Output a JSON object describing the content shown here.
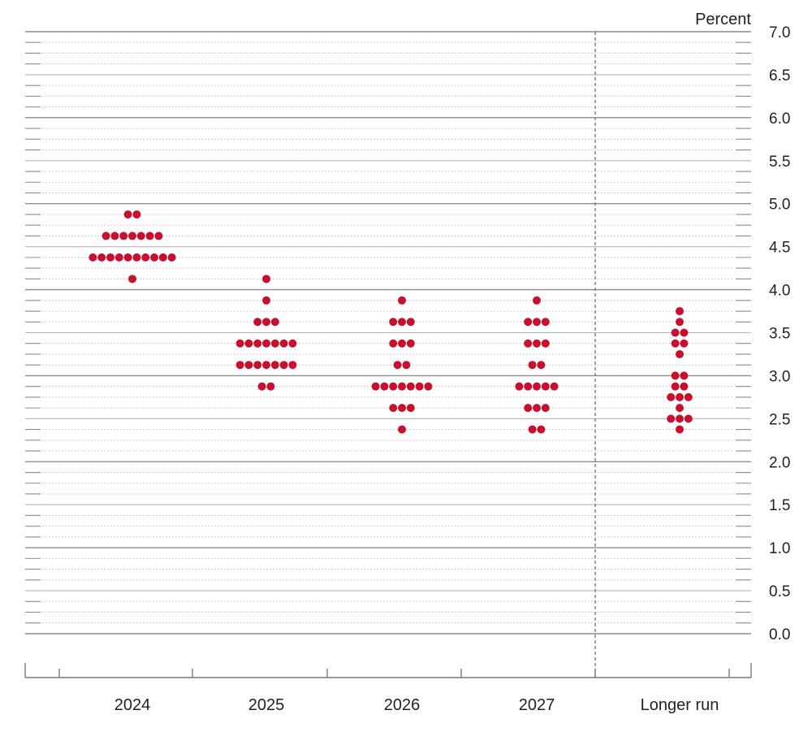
{
  "chart_data": {
    "type": "scatter",
    "unit_label": "Percent",
    "categories": [
      "2024",
      "2025",
      "2026",
      "2027",
      "Longer run"
    ],
    "ylim": [
      0,
      7
    ],
    "y_ticks": [
      "0.0",
      "0.5",
      "1.0",
      "1.5",
      "2.0",
      "2.5",
      "3.0",
      "3.5",
      "4.0",
      "4.5",
      "5.0",
      "5.5",
      "6.0",
      "6.5",
      "7.0"
    ],
    "minor_tick_step": 0.125,
    "grid": true,
    "dot_color": "#c8102e",
    "dots": [
      {
        "category": "2024",
        "points": [
          {
            "value": 4.875,
            "count": 2
          },
          {
            "value": 4.625,
            "count": 7
          },
          {
            "value": 4.375,
            "count": 10
          },
          {
            "value": 4.125,
            "count": 1
          }
        ]
      },
      {
        "category": "2025",
        "points": [
          {
            "value": 4.125,
            "count": 1
          },
          {
            "value": 3.875,
            "count": 1
          },
          {
            "value": 3.625,
            "count": 3
          },
          {
            "value": 3.375,
            "count": 7
          },
          {
            "value": 3.125,
            "count": 7
          },
          {
            "value": 2.875,
            "count": 2
          }
        ]
      },
      {
        "category": "2026",
        "points": [
          {
            "value": 3.875,
            "count": 1
          },
          {
            "value": 3.625,
            "count": 3
          },
          {
            "value": 3.375,
            "count": 3
          },
          {
            "value": 3.125,
            "count": 2
          },
          {
            "value": 2.875,
            "count": 7
          },
          {
            "value": 2.625,
            "count": 3
          },
          {
            "value": 2.375,
            "count": 1
          }
        ]
      },
      {
        "category": "2027",
        "points": [
          {
            "value": 3.875,
            "count": 1
          },
          {
            "value": 3.625,
            "count": 3
          },
          {
            "value": 3.375,
            "count": 3
          },
          {
            "value": 3.125,
            "count": 2
          },
          {
            "value": 2.875,
            "count": 5
          },
          {
            "value": 2.625,
            "count": 3
          },
          {
            "value": 2.375,
            "count": 2
          }
        ]
      },
      {
        "category": "Longer run",
        "points": [
          {
            "value": 3.75,
            "count": 1
          },
          {
            "value": 3.625,
            "count": 1
          },
          {
            "value": 3.5,
            "count": 2
          },
          {
            "value": 3.375,
            "count": 2
          },
          {
            "value": 3.25,
            "count": 1
          },
          {
            "value": 3.0,
            "count": 2
          },
          {
            "value": 2.875,
            "count": 2
          },
          {
            "value": 2.75,
            "count": 3
          },
          {
            "value": 2.625,
            "count": 1
          },
          {
            "value": 2.5,
            "count": 3
          },
          {
            "value": 2.375,
            "count": 1
          }
        ]
      }
    ]
  }
}
